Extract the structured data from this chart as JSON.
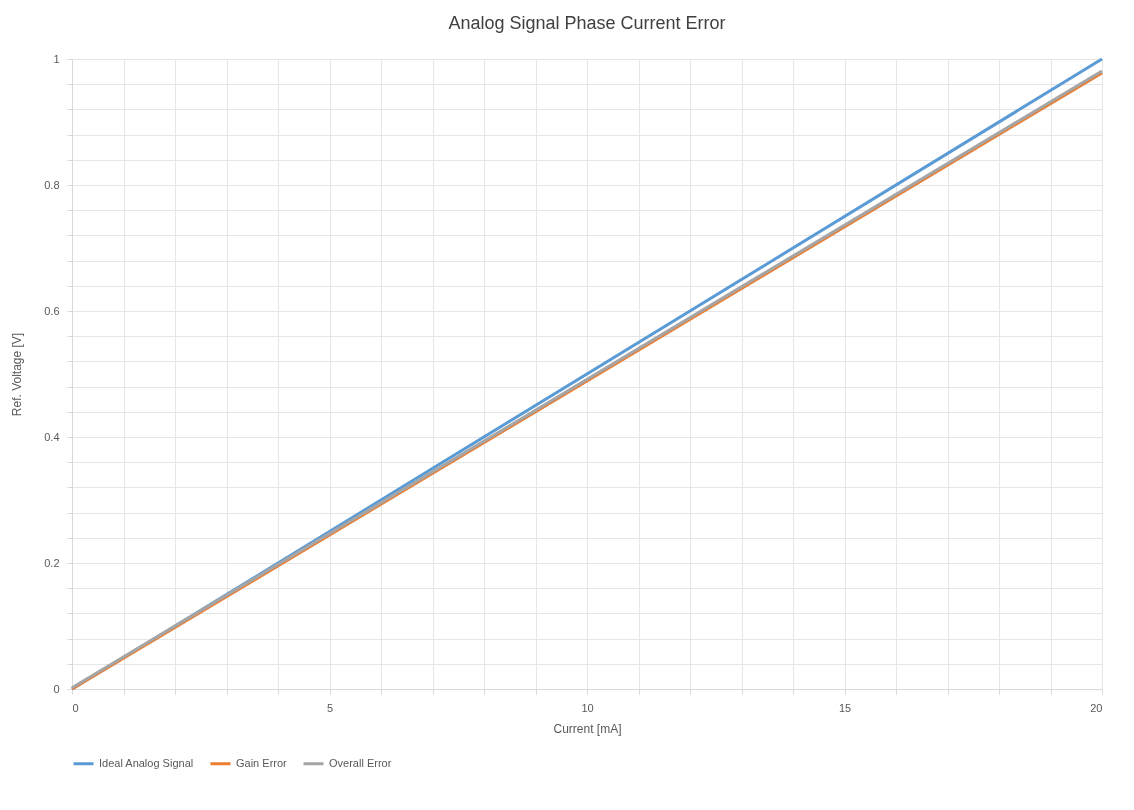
{
  "chart_data": {
    "type": "line",
    "title": "Analog Signal Phase Current Error",
    "xlabel": "Current [mA]",
    "ylabel": "Ref. Voltage [V]",
    "x": [
      0,
      20
    ],
    "series": [
      {
        "name": "Ideal Analog Signal",
        "color": "#5b9bd5",
        "values": [
          0,
          1
        ]
      },
      {
        "name": "Gain Error",
        "color": "#ed7d31",
        "values": [
          0,
          0.978
        ]
      },
      {
        "name": "Overall Error",
        "color": "#a5a5a5",
        "values": [
          0.002,
          0.981
        ]
      }
    ],
    "xlim": [
      0,
      20
    ],
    "ylim": [
      0,
      1
    ],
    "xticks": [
      0,
      {
        "value": 1,
        "label": null
      },
      {
        "value": 2,
        "label": null
      },
      {
        "value": 3,
        "label": null
      },
      {
        "value": 4,
        "label": null
      },
      5,
      {
        "value": 6,
        "label": null
      },
      {
        "value": 7,
        "label": null
      },
      {
        "value": 8,
        "label": null
      },
      {
        "value": 9,
        "label": null
      },
      10,
      {
        "value": 11,
        "label": null
      },
      {
        "value": 12,
        "label": null
      },
      {
        "value": 13,
        "label": null
      },
      {
        "value": 14,
        "label": null
      },
      15,
      {
        "value": 16,
        "label": null
      },
      {
        "value": 17,
        "label": null
      },
      {
        "value": 18,
        "label": null
      },
      {
        "value": 19,
        "label": null
      },
      20
    ],
    "yticks": [
      0,
      {
        "value": 0.04,
        "label": null
      },
      {
        "value": 0.08,
        "label": null
      },
      {
        "value": 0.12,
        "label": null
      },
      {
        "value": 0.16,
        "label": null
      },
      0.2,
      {
        "value": 0.24,
        "label": null
      },
      {
        "value": 0.28,
        "label": null
      },
      {
        "value": 0.32,
        "label": null
      },
      {
        "value": 0.36,
        "label": null
      },
      0.4,
      {
        "value": 0.44,
        "label": null
      },
      {
        "value": 0.48,
        "label": null
      },
      {
        "value": 0.52,
        "label": null
      },
      {
        "value": 0.56,
        "label": null
      },
      0.6,
      {
        "value": 0.64,
        "label": null
      },
      {
        "value": 0.68,
        "label": null
      },
      {
        "value": 0.72,
        "label": null
      },
      {
        "value": 0.76,
        "label": null
      },
      0.8,
      {
        "value": 0.84,
        "label": null
      },
      {
        "value": 0.88,
        "label": null
      },
      {
        "value": 0.92,
        "label": null
      },
      {
        "value": 0.96,
        "label": null
      },
      1
    ],
    "grid": true,
    "legend": "bottom",
    "marker": "none",
    "line_style": "solid"
  }
}
